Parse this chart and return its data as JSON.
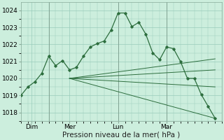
{
  "background_color": "#cceedd",
  "grid_color": "#99ccbb",
  "line_color": "#2d6e3e",
  "ylim": [
    1017.5,
    1024.5
  ],
  "xlim": [
    0,
    29
  ],
  "yticks": [
    1018,
    1019,
    1020,
    1021,
    1022,
    1023,
    1024
  ],
  "xtick_positions": [
    1.5,
    7,
    14,
    21
  ],
  "xtick_labels": [
    "Dim",
    "Mer",
    "Lun",
    "Mar"
  ],
  "vlines": [
    4,
    14,
    21
  ],
  "xlabel": "Pression niveau de la mer( hPa )",
  "tick_fontsize": 6.5,
  "xlabel_fontsize": 7.5,
  "main_line": [
    [
      0,
      1019.0
    ],
    [
      1,
      1019.5
    ],
    [
      2,
      1019.8
    ],
    [
      3,
      1020.3
    ],
    [
      4,
      1021.3
    ],
    [
      5,
      1020.75
    ],
    [
      6,
      1021.05
    ],
    [
      7,
      1020.5
    ],
    [
      8,
      1020.65
    ],
    [
      9,
      1021.3
    ],
    [
      10,
      1021.85
    ],
    [
      11,
      1022.05
    ],
    [
      12,
      1022.2
    ],
    [
      13,
      1022.85
    ],
    [
      14,
      1023.85
    ],
    [
      15,
      1023.85
    ],
    [
      16,
      1023.05
    ],
    [
      17,
      1023.3
    ],
    [
      18,
      1022.6
    ],
    [
      19,
      1021.5
    ],
    [
      20,
      1021.1
    ],
    [
      21,
      1021.85
    ],
    [
      22,
      1021.75
    ],
    [
      23,
      1021.0
    ],
    [
      24,
      1020.0
    ],
    [
      25,
      1020.0
    ],
    [
      26,
      1019.05
    ],
    [
      27,
      1018.35
    ],
    [
      28,
      1017.65
    ]
  ],
  "trend_lines": [
    [
      [
        7,
        1020.0
      ],
      [
        28,
        1021.15
      ]
    ],
    [
      [
        7,
        1020.0
      ],
      [
        28,
        1020.5
      ]
    ],
    [
      [
        7,
        1020.0
      ],
      [
        28,
        1019.5
      ]
    ],
    [
      [
        7,
        1020.0
      ],
      [
        28,
        1017.65
      ]
    ]
  ]
}
